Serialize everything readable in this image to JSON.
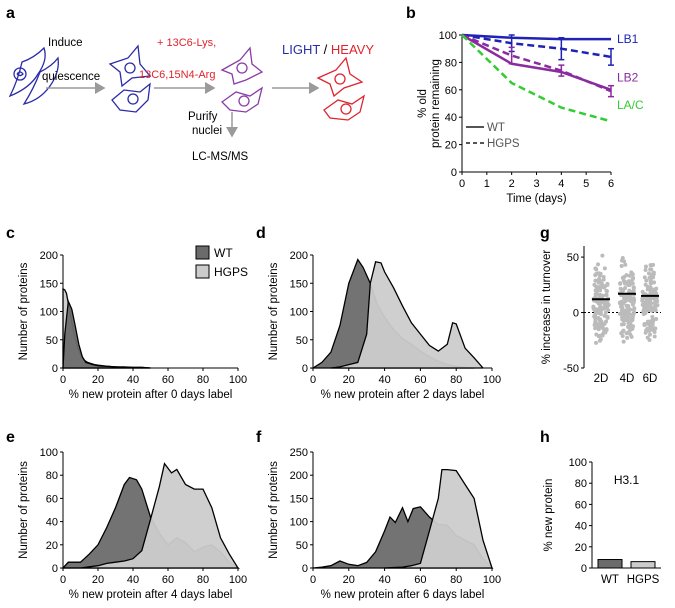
{
  "panel_labels": {
    "a": "a",
    "b": "b",
    "c": "c",
    "d": "d",
    "e": "e",
    "f": "f",
    "g": "g",
    "h": "h"
  },
  "schematic": {
    "step1_line1": "Induce",
    "step1_line2": "quiescence",
    "label_lys": "+ 13C6-Lys,",
    "label_arg": "13C6,15N4-Arg",
    "light": "LIGHT",
    "slash": " / ",
    "heavy": "HEAVY",
    "purify_line1": "Purify",
    "purify_line2": "nuclei",
    "lcms": "LC-MS/MS",
    "colors": {
      "light": "#2b2ba8",
      "heavy": "#e0242e",
      "purple": "#8a3ca8",
      "arrow": "#9a9a9a"
    }
  },
  "legend_main": {
    "wt": "WT",
    "hgps": "HGPS",
    "wt_color": "#6b6b6b",
    "hgps_color": "#cccccc"
  },
  "chart_data": [
    {
      "id": "b",
      "type": "line",
      "xlabel": "Time (days)",
      "ylabel_line1": "% old",
      "ylabel_line2": "protein remaining",
      "xlim": [
        0,
        6
      ],
      "ylim": [
        0,
        100
      ],
      "xticks": [
        0,
        1,
        2,
        3,
        4,
        5,
        6
      ],
      "yticks": [
        0,
        20,
        40,
        60,
        80,
        100
      ],
      "legend": {
        "wt": "WT",
        "hgps": "HGPS"
      },
      "series": [
        {
          "name": "LB1",
          "color": "#1f22b4",
          "wt": [
            [
              0,
              100
            ],
            [
              2,
              98
            ],
            [
              4,
              97
            ],
            [
              6,
              97
            ]
          ],
          "hgps": [
            [
              0,
              100
            ],
            [
              2,
              94
            ],
            [
              4,
              90
            ],
            [
              6,
              84
            ]
          ],
          "hgps_err": [
            [
              2,
              6
            ],
            [
              4,
              8
            ],
            [
              6,
              6
            ]
          ]
        },
        {
          "name": "LB2",
          "color": "#8a2ba0",
          "wt": [
            [
              0,
              100
            ],
            [
              2,
              79
            ],
            [
              4,
              73
            ],
            [
              6,
              60
            ]
          ],
          "hgps": [
            [
              0,
              100
            ],
            [
              2,
              85
            ],
            [
              4,
              74
            ],
            [
              6,
              59
            ]
          ],
          "hgps_err": [
            [
              2,
              6
            ],
            [
              4,
              4
            ],
            [
              6,
              4
            ]
          ]
        },
        {
          "name": "LA/C",
          "color": "#33cc33",
          "wt": [],
          "hgps": [
            [
              0,
              100
            ],
            [
              2,
              65
            ],
            [
              4,
              47
            ],
            [
              6,
              37
            ]
          ],
          "hgps_err": []
        }
      ]
    },
    {
      "id": "c",
      "type": "area",
      "xlabel": "% new protein after 0 days label",
      "ylabel": "Number of proteins",
      "xlim": [
        0,
        100
      ],
      "ylim": [
        0,
        200
      ],
      "xticks": [
        0,
        20,
        40,
        60,
        80,
        100
      ],
      "yticks": [
        0,
        50,
        100,
        150,
        200
      ],
      "series": [
        {
          "name": "WT",
          "x": [
            0,
            1,
            3,
            5,
            7,
            9,
            11,
            13,
            15,
            17,
            20,
            25,
            30,
            35,
            40,
            45,
            50
          ],
          "values": [
            0,
            60,
            118,
            104,
            74,
            42,
            20,
            10,
            8,
            6,
            4,
            3,
            2,
            2,
            1,
            1,
            0
          ]
        },
        {
          "name": "HGPS",
          "x": [
            0,
            1,
            2,
            4,
            6,
            8,
            10,
            12,
            14,
            16,
            18,
            20,
            25,
            30,
            35,
            40,
            45,
            50
          ],
          "values": [
            140,
            138,
            132,
            98,
            66,
            40,
            24,
            14,
            10,
            8,
            6,
            5,
            3,
            2,
            1,
            1,
            1,
            0
          ]
        }
      ]
    },
    {
      "id": "d",
      "type": "area",
      "xlabel": "% new protein after 2 days label",
      "ylabel": "Number of proteins",
      "xlim": [
        0,
        100
      ],
      "ylim": [
        0,
        200
      ],
      "xticks": [
        0,
        20,
        40,
        60,
        80,
        100
      ],
      "yticks": [
        0,
        50,
        100,
        150,
        200
      ],
      "series": [
        {
          "name": "WT",
          "x": [
            0,
            5,
            10,
            15,
            20,
            25,
            28,
            32,
            36,
            40,
            45,
            50,
            55,
            60,
            65,
            70,
            75,
            80,
            85,
            90
          ],
          "values": [
            0,
            10,
            28,
            75,
            150,
            192,
            178,
            150,
            112,
            90,
            68,
            52,
            42,
            30,
            20,
            12,
            6,
            3,
            1,
            0
          ]
        },
        {
          "name": "HGPS",
          "x": [
            10,
            15,
            20,
            25,
            30,
            32,
            35,
            38,
            40,
            45,
            50,
            55,
            60,
            65,
            70,
            75,
            78,
            80,
            85,
            90,
            95
          ],
          "values": [
            0,
            2,
            6,
            10,
            60,
            150,
            188,
            186,
            170,
            142,
            110,
            80,
            60,
            40,
            30,
            42,
            80,
            78,
            35,
            18,
            0
          ]
        }
      ]
    },
    {
      "id": "e",
      "type": "area",
      "xlabel": "% new protein after 4 days label",
      "ylabel": "Number of proteins",
      "xlim": [
        0,
        100
      ],
      "ylim": [
        0,
        100
      ],
      "xticks": [
        0,
        20,
        40,
        60,
        80,
        100
      ],
      "yticks": [
        0,
        20,
        40,
        60,
        80,
        100
      ],
      "series": [
        {
          "name": "WT",
          "x": [
            0,
            3,
            6,
            10,
            15,
            20,
            25,
            30,
            35,
            38,
            42,
            45,
            50,
            55,
            60,
            65,
            70,
            75,
            80,
            85,
            90,
            95,
            100
          ],
          "values": [
            0,
            5,
            5,
            5,
            12,
            20,
            35,
            52,
            72,
            78,
            76,
            68,
            44,
            30,
            20,
            26,
            22,
            14,
            18,
            20,
            14,
            5,
            0
          ]
        },
        {
          "name": "HGPS",
          "x": [
            0,
            5,
            10,
            15,
            20,
            25,
            30,
            35,
            40,
            45,
            50,
            55,
            58,
            62,
            65,
            70,
            75,
            80,
            85,
            90,
            95,
            100
          ],
          "values": [
            0,
            0,
            0,
            1,
            2,
            4,
            5,
            6,
            8,
            15,
            42,
            70,
            90,
            82,
            85,
            72,
            68,
            68,
            52,
            26,
            12,
            0
          ]
        }
      ]
    },
    {
      "id": "f",
      "type": "area",
      "xlabel": "% new protein after 6 days label",
      "ylabel": "Number of proteins",
      "xlim": [
        0,
        100
      ],
      "ylim": [
        0,
        250
      ],
      "xticks": [
        0,
        20,
        40,
        60,
        80,
        100
      ],
      "yticks": [
        0,
        50,
        100,
        150,
        200,
        250
      ],
      "series": [
        {
          "name": "WT",
          "x": [
            0,
            5,
            10,
            15,
            20,
            25,
            30,
            35,
            40,
            43,
            46,
            50,
            53,
            56,
            60,
            65,
            70,
            75,
            80,
            85,
            90,
            95,
            100
          ],
          "values": [
            0,
            2,
            5,
            15,
            8,
            5,
            12,
            35,
            80,
            110,
            98,
            130,
            100,
            128,
            132,
            110,
            94,
            92,
            70,
            60,
            50,
            20,
            0
          ]
        },
        {
          "name": "HGPS",
          "x": [
            40,
            45,
            50,
            55,
            60,
            65,
            70,
            72,
            75,
            80,
            85,
            90,
            95,
            100
          ],
          "values": [
            0,
            1,
            2,
            5,
            10,
            80,
            150,
            212,
            212,
            210,
            180,
            150,
            60,
            0
          ]
        }
      ]
    },
    {
      "id": "g",
      "type": "scatter",
      "ylabel": "% increase in turnover",
      "ylim": [
        -50,
        60
      ],
      "yticks": [
        -50,
        0,
        50
      ],
      "categories": [
        "2D",
        "4D",
        "6D"
      ],
      "medians": [
        12,
        17,
        15
      ]
    },
    {
      "id": "h",
      "type": "bar",
      "title": "H3.1",
      "ylabel": "% new protein",
      "ylim": [
        0,
        100
      ],
      "yticks": [
        0,
        20,
        40,
        60,
        80,
        100
      ],
      "categories": [
        "WT",
        "HGPS"
      ],
      "values": [
        8,
        6
      ]
    }
  ]
}
